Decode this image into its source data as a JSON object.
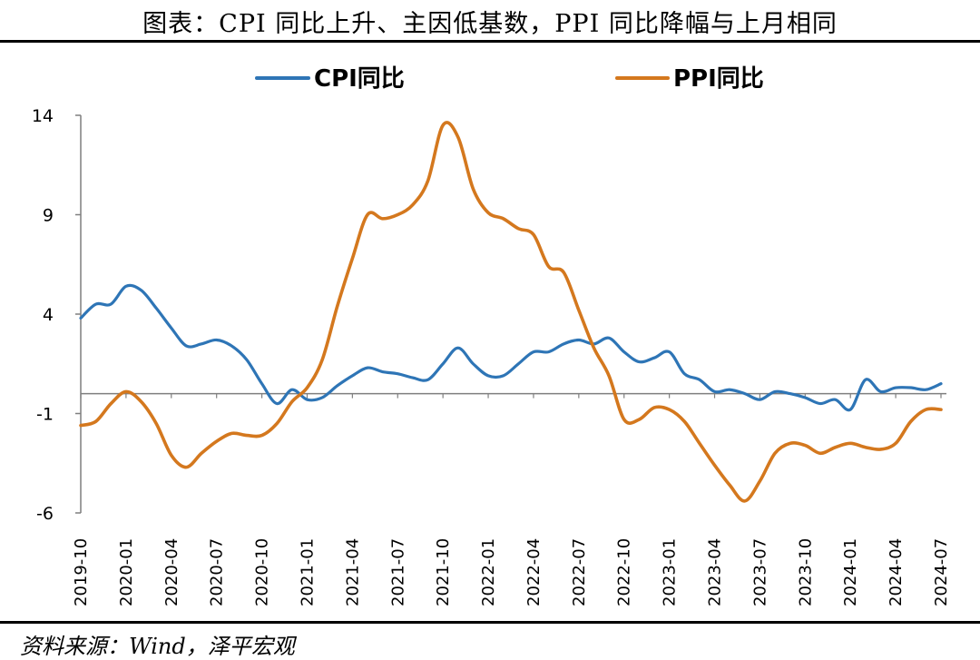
{
  "title": "图表：CPI 同比上升、主因低基数，PPI 同比降幅与上月相同",
  "source": "资料来源：Wind，泽平宏观",
  "chart_data": {
    "type": "line",
    "title": "图表：CPI 同比上升、主因低基数，PPI 同比降幅与上月相同",
    "xlabel": "",
    "ylabel": "",
    "ylim": [
      -6,
      14
    ],
    "yticks": [
      14,
      9,
      4,
      -1,
      -6
    ],
    "grid": false,
    "legend_position": "top",
    "x": [
      "2019-10",
      "2019-11",
      "2019-12",
      "2020-01",
      "2020-02",
      "2020-03",
      "2020-04",
      "2020-05",
      "2020-06",
      "2020-07",
      "2020-08",
      "2020-09",
      "2020-10",
      "2020-11",
      "2020-12",
      "2021-01",
      "2021-02",
      "2021-03",
      "2021-04",
      "2021-05",
      "2021-06",
      "2021-07",
      "2021-08",
      "2021-09",
      "2021-10",
      "2021-11",
      "2021-12",
      "2022-01",
      "2022-02",
      "2022-03",
      "2022-04",
      "2022-05",
      "2022-06",
      "2022-07",
      "2022-08",
      "2022-09",
      "2022-10",
      "2022-11",
      "2022-12",
      "2023-01",
      "2023-02",
      "2023-03",
      "2023-04",
      "2023-05",
      "2023-06",
      "2023-07",
      "2023-08",
      "2023-09",
      "2023-10",
      "2023-11",
      "2023-12",
      "2024-01",
      "2024-02",
      "2024-03",
      "2024-04",
      "2024-05",
      "2024-06",
      "2024-07"
    ],
    "xticks": [
      "2019-10",
      "2020-01",
      "2020-04",
      "2020-07",
      "2020-10",
      "2021-01",
      "2021-04",
      "2021-07",
      "2021-10",
      "2022-01",
      "2022-04",
      "2022-07",
      "2022-10",
      "2023-01",
      "2023-04",
      "2023-07",
      "2023-10",
      "2024-01",
      "2024-04",
      "2024-07"
    ],
    "series": [
      {
        "name": "CPI同比",
        "color": "#2e75b6",
        "values": [
          3.8,
          4.5,
          4.5,
          5.4,
          5.2,
          4.3,
          3.3,
          2.4,
          2.5,
          2.7,
          2.4,
          1.7,
          0.5,
          -0.5,
          0.2,
          -0.3,
          -0.2,
          0.4,
          0.9,
          1.3,
          1.1,
          1.0,
          0.8,
          0.7,
          1.5,
          2.3,
          1.5,
          0.9,
          0.9,
          1.5,
          2.1,
          2.1,
          2.5,
          2.7,
          2.5,
          2.8,
          2.1,
          1.6,
          1.8,
          2.1,
          1.0,
          0.7,
          0.1,
          0.2,
          0.0,
          -0.3,
          0.1,
          0.0,
          -0.2,
          -0.5,
          -0.3,
          -0.8,
          0.7,
          0.1,
          0.3,
          0.3,
          0.2,
          0.5
        ]
      },
      {
        "name": "PPI同比",
        "color": "#d4781e",
        "values": [
          -1.6,
          -1.4,
          -0.5,
          0.1,
          -0.4,
          -1.5,
          -3.1,
          -3.7,
          -3.0,
          -2.4,
          -2.0,
          -2.1,
          -2.1,
          -1.5,
          -0.4,
          0.3,
          1.7,
          4.4,
          6.8,
          9.0,
          8.8,
          9.0,
          9.5,
          10.7,
          13.5,
          12.9,
          10.3,
          9.1,
          8.8,
          8.3,
          8.0,
          6.4,
          6.1,
          4.2,
          2.3,
          0.9,
          -1.3,
          -1.3,
          -0.7,
          -0.8,
          -1.4,
          -2.5,
          -3.6,
          -4.6,
          -5.4,
          -4.4,
          -3.0,
          -2.5,
          -2.6,
          -3.0,
          -2.7,
          -2.5,
          -2.7,
          -2.8,
          -2.5,
          -1.4,
          -0.8,
          -0.8
        ]
      }
    ]
  }
}
